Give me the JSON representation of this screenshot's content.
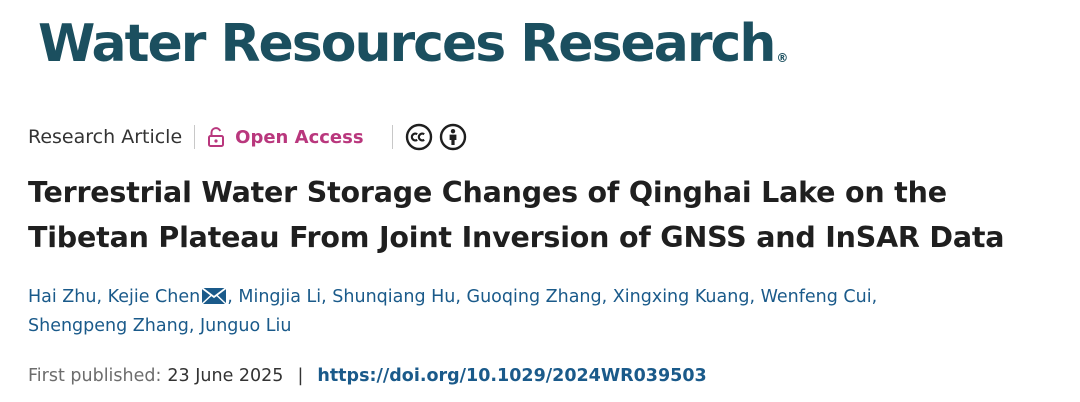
{
  "journal": {
    "name": "Water Resources Research",
    "trademark": "®",
    "color": "#1b4f5f"
  },
  "meta": {
    "article_type": "Research Article",
    "access_label": "Open Access",
    "access_color": "#b9377d",
    "license_icons": [
      "creative-commons-icon",
      "attribution-icon"
    ]
  },
  "article": {
    "title": "Terrestrial Water Storage Changes of Qinghai Lake on the Tibetan Plateau From Joint Inversion of GNSS and InSAR Data"
  },
  "authors": [
    {
      "name": "Hai Zhu",
      "corresponding": false
    },
    {
      "name": "Kejie Chen",
      "corresponding": true
    },
    {
      "name": "Mingjia Li",
      "corresponding": false
    },
    {
      "name": "Shunqiang Hu",
      "corresponding": false
    },
    {
      "name": "Guoqing Zhang",
      "corresponding": false
    },
    {
      "name": "Xingxing Kuang",
      "corresponding": false
    },
    {
      "name": "Wenfeng Cui",
      "corresponding": false
    },
    {
      "name": "Shengpeng Zhang",
      "corresponding": false
    },
    {
      "name": "Junguo Liu",
      "corresponding": false
    }
  ],
  "publication": {
    "label": "First published:",
    "date": "23 June 2025",
    "separator": "|",
    "doi": "https://doi.org/10.1029/2024WR039503",
    "link_color": "#1a5a8a"
  }
}
